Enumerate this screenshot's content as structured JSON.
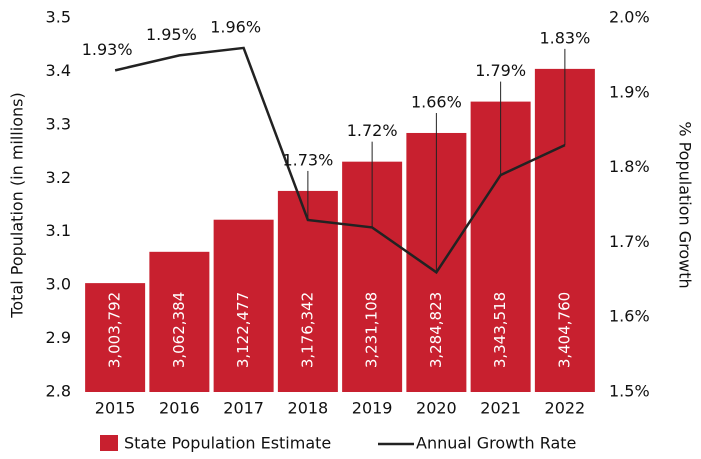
{
  "chart_data": {
    "type": "bar-line",
    "categories": [
      "2015",
      "2016",
      "2017",
      "2018",
      "2019",
      "2020",
      "2021",
      "2022"
    ],
    "ylabel": "Total Population (in millions)",
    "y2label": "% Population Growth",
    "ylim": [
      2.8,
      3.5
    ],
    "yticks": [
      2.8,
      2.9,
      {
        "value": 3,
        "label": "3.0"
      },
      3.1,
      3.2,
      3.3,
      3.4,
      3.5
    ],
    "y2lim": [
      1.5,
      2.0
    ],
    "y2ticks": [
      {
        "value": 1.5,
        "label": "1.5%"
      },
      {
        "value": 1.6,
        "label": "1.6%"
      },
      {
        "value": 1.7,
        "label": "1.7%"
      },
      {
        "value": 1.8,
        "label": "1.8%"
      },
      {
        "value": 1.9,
        "label": "1.9%"
      },
      {
        "value": 2.0,
        "label": "2.0%"
      }
    ],
    "series": [
      {
        "name": "State Population Estimate",
        "type": "bar",
        "color": "#c8202f",
        "values": [
          3.003792,
          3.062384,
          3.122477,
          3.176342,
          3.231108,
          3.284823,
          3.343518,
          3.40476
        ],
        "value_labels": [
          "3,003,792",
          "3,062,384",
          "3,122,477",
          "3,176,342",
          "3,231,108",
          "3,284,823",
          "3,343,518",
          "3,404,760"
        ]
      },
      {
        "name": "Annual Growth Rate",
        "type": "line",
        "axis": "y2",
        "color": "#222222",
        "values": [
          1.93,
          1.95,
          1.96,
          1.73,
          1.72,
          1.66,
          1.79,
          1.83
        ],
        "value_labels": [
          "1.93%",
          "1.95%",
          "1.96%",
          "1.73%",
          "1.72%",
          "1.66%",
          "1.79%",
          "1.83%"
        ]
      }
    ],
    "legend": "bottom"
  }
}
